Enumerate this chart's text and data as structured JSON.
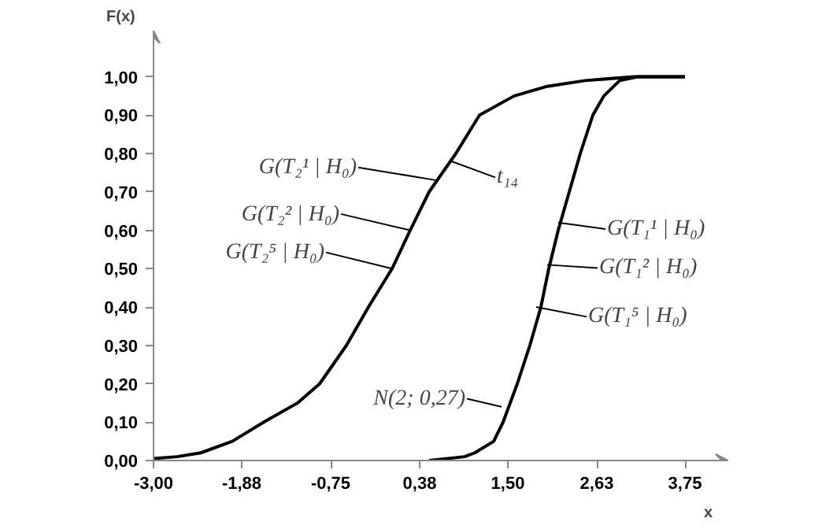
{
  "chart_data": {
    "type": "line",
    "xlabel": "x",
    "ylabel": "F(x)",
    "xlim": [
      -3,
      4.3
    ],
    "ylim": [
      0,
      1.12
    ],
    "xticks": [
      {
        "value": -3,
        "label": "-3,00"
      },
      {
        "value": -1.88,
        "label": "-1,88"
      },
      {
        "value": -0.75,
        "label": "-0,75"
      },
      {
        "value": 0.38,
        "label": "0,38"
      },
      {
        "value": 1.5,
        "label": "1,50"
      },
      {
        "value": 2.63,
        "label": "2,63"
      },
      {
        "value": 3.75,
        "label": "3,75"
      }
    ],
    "yticks": [
      {
        "value": 0,
        "label": "0,00"
      },
      {
        "value": 0.1,
        "label": "0,10"
      },
      {
        "value": 0.2,
        "label": "0,20"
      },
      {
        "value": 0.3,
        "label": "0,30"
      },
      {
        "value": 0.4,
        "label": "0,40"
      },
      {
        "value": 0.5,
        "label": "0,50"
      },
      {
        "value": 0.6,
        "label": "0,60"
      },
      {
        "value": 0.7,
        "label": "0,70"
      },
      {
        "value": 0.8,
        "label": "0,80"
      },
      {
        "value": 0.9,
        "label": "0,90"
      },
      {
        "value": 1.0,
        "label": "1,00"
      }
    ],
    "grid": false,
    "marker": "none",
    "line_style": "solid",
    "series": [
      {
        "color": "#000000",
        "x": [
          -3,
          -2.7,
          -2.4,
          -2.0,
          -1.6,
          -1.17,
          -0.89,
          -0.55,
          -0.27,
          0.03,
          0.26,
          0.5,
          0.84,
          1.14,
          1.58,
          2.0,
          2.48,
          3.1,
          3.75
        ],
        "values": [
          0.005,
          0.01,
          0.02,
          0.05,
          0.1,
          0.15,
          0.2,
          0.3,
          0.4,
          0.5,
          0.6,
          0.7,
          0.8,
          0.9,
          0.95,
          0.975,
          0.99,
          1.0,
          1.0
        ]
      },
      {
        "color": "#000000",
        "x": [
          0.5,
          0.95,
          1.08,
          1.32,
          1.44,
          1.53,
          1.62,
          1.78,
          1.92,
          2.02,
          2.14,
          2.28,
          2.42,
          2.58,
          2.72,
          2.92,
          3.15,
          3.75
        ],
        "values": [
          0,
          0.01,
          0.02,
          0.05,
          0.1,
          0.15,
          0.2,
          0.3,
          0.4,
          0.5,
          0.6,
          0.7,
          0.8,
          0.9,
          0.95,
          0.99,
          1.0,
          1.0
        ]
      }
    ],
    "annotations": [
      {
        "text": "G(T₂¹ | H₀)",
        "x": 0.6,
        "y": 0.73
      },
      {
        "text": "G(T₂² | H₀)",
        "x": 0.26,
        "y": 0.6
      },
      {
        "text": "G(T₂⁵ | H₀)",
        "x": 0.03,
        "y": 0.5
      },
      {
        "text": "t₁₄",
        "x": 0.78,
        "y": 0.78
      },
      {
        "text": "G(T₁¹ | H₀)",
        "x": 2.14,
        "y": 0.62
      },
      {
        "text": "G(T₁² | H₀)",
        "x": 2.0,
        "y": 0.51
      },
      {
        "text": "G(T₁⁵ | H₀)",
        "x": 1.86,
        "y": 0.4
      },
      {
        "text": "N(2; 0,27)",
        "x": 1.42,
        "y": 0.14
      }
    ]
  }
}
